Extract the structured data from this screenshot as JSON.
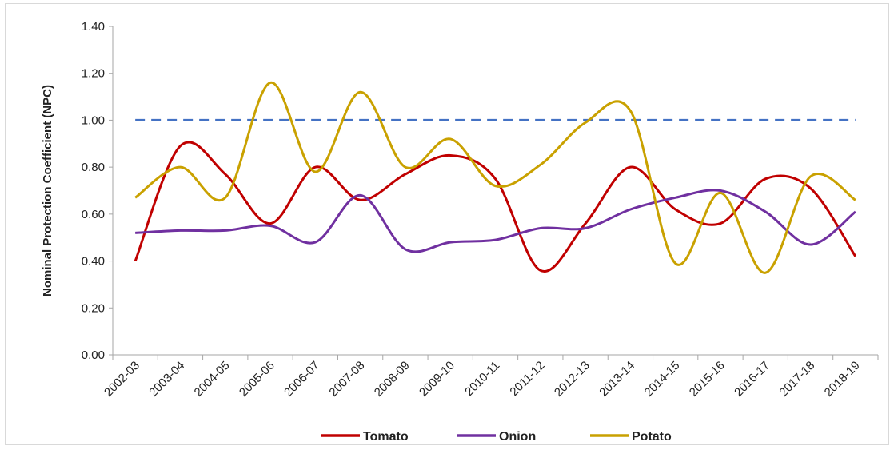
{
  "chart_data": {
    "type": "line",
    "title": "",
    "xlabel": "",
    "ylabel": "Nominal Protection Coefficient (NPC)",
    "ylim": [
      0,
      1.4
    ],
    "yticks": [
      "0.00",
      "0.20",
      "0.40",
      "0.60",
      "0.80",
      "1.00",
      "1.20",
      "1.40"
    ],
    "categories": [
      "2002-03",
      "2003-04",
      "2004-05",
      "2005-06",
      "2006-07",
      "2007-08",
      "2008-09",
      "2009-10",
      "2010-11",
      "2011-12",
      "2012-13",
      "2013-14",
      "2014-15",
      "2015-16",
      "2016-17",
      "2017-18",
      "2018-19"
    ],
    "grid": false,
    "legend": "bottom",
    "reference_line": {
      "value": 1.0,
      "color": "#4472c4",
      "style": "dashed"
    },
    "series": [
      {
        "name": "Tomato",
        "color": "#c00000",
        "values": [
          0.4,
          0.89,
          0.77,
          0.56,
          0.8,
          0.66,
          0.77,
          0.85,
          0.75,
          0.36,
          0.56,
          0.8,
          0.62,
          0.56,
          0.75,
          0.71,
          0.42
        ]
      },
      {
        "name": "Onion",
        "color": "#7030a0",
        "values": [
          0.52,
          0.53,
          0.53,
          0.55,
          0.48,
          0.68,
          0.45,
          0.48,
          0.49,
          0.54,
          0.54,
          0.62,
          0.67,
          0.7,
          0.61,
          0.47,
          0.61
        ]
      },
      {
        "name": "Potato",
        "color": "#c9a100",
        "values": [
          0.67,
          0.8,
          0.67,
          1.16,
          0.78,
          1.12,
          0.8,
          0.92,
          0.72,
          0.81,
          0.99,
          1.04,
          0.39,
          0.69,
          0.35,
          0.76,
          0.66
        ]
      }
    ]
  }
}
